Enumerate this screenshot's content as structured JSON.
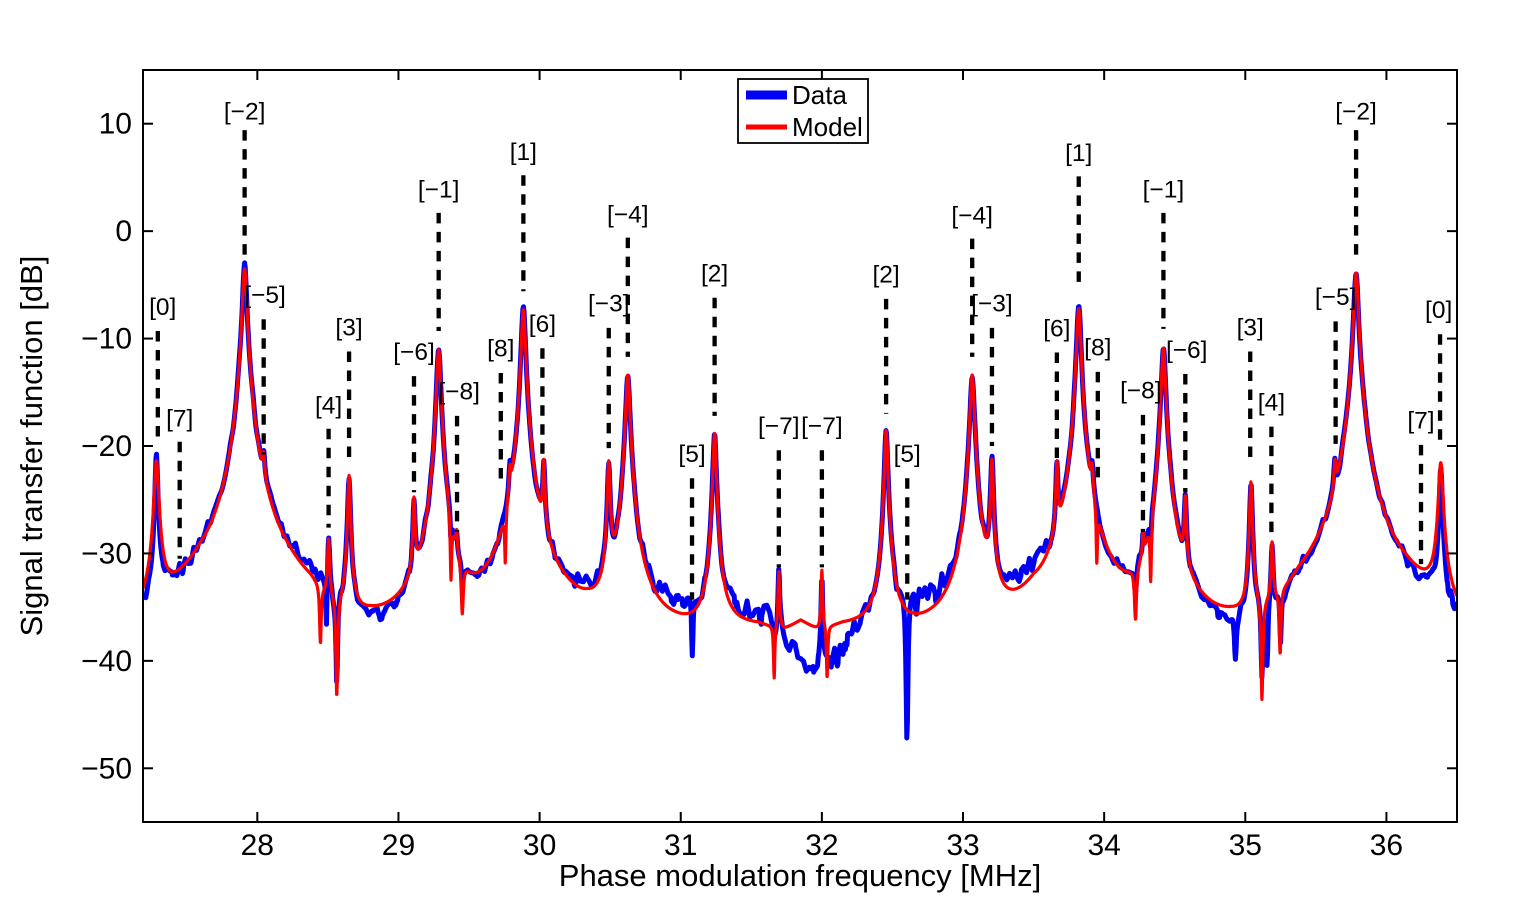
{
  "figure": {
    "background": "#ffffff"
  },
  "chart_data": {
    "type": "line",
    "title": "",
    "xlabel": "Phase modulation frequency [MHz]",
    "ylabel": "Signal transfer function [dB]",
    "xlim": [
      27.19,
      36.5
    ],
    "ylim": [
      -55,
      15
    ],
    "xticks": [
      28,
      29,
      30,
      31,
      32,
      33,
      34,
      35,
      36
    ],
    "yticks": [
      {
        "v": 10,
        "label": "10"
      },
      {
        "v": 0,
        "label": "0"
      },
      {
        "v": -10,
        "label": "−10"
      },
      {
        "v": -20,
        "label": "−20"
      },
      {
        "v": -30,
        "label": "−30"
      },
      {
        "v": -40,
        "label": "−40"
      },
      {
        "v": -50,
        "label": "−50"
      }
    ],
    "grid": false,
    "legend": {
      "position": "top-center",
      "entries": [
        {
          "label": "Data",
          "color": "#0000f2",
          "sample_width": 9
        },
        {
          "label": "Model",
          "color": "#ff0000",
          "sample_width": 5
        }
      ]
    },
    "series": [
      {
        "name": "Data",
        "color": "#0000f2",
        "stroke_width": 5.0
      },
      {
        "name": "Model",
        "color": "#ff0000",
        "stroke_width": 3.2
      }
    ],
    "model_peaks": [
      {
        "mode": "[0]",
        "f": 27.285,
        "db": -21.6,
        "w": 0.03
      },
      {
        "mode": "[−2]",
        "f": 27.91,
        "db": -3.5,
        "w": 0.03
      },
      {
        "mode": "[−5]",
        "f": 28.045,
        "db": -24.8,
        "w": 0.014
      },
      {
        "mode": "[4]",
        "f": 28.505,
        "db": -29.8,
        "w": 0.014
      },
      {
        "mode": "[3]",
        "f": 28.65,
        "db": -22.9,
        "w": 0.018
      },
      {
        "mode": "[−6]",
        "f": 29.11,
        "db": -25.8,
        "w": 0.014
      },
      {
        "mode": "[−1]",
        "f": 29.285,
        "db": -11.0,
        "w": 0.028
      },
      {
        "mode": "[−8]",
        "f": 29.412,
        "db": -32.3,
        "w": 0.01
      },
      {
        "mode": "[8]",
        "f": 29.79,
        "db": -25.5,
        "w": 0.014
      },
      {
        "mode": "[1]",
        "f": 29.885,
        "db": -7.3,
        "w": 0.028
      },
      {
        "mode": "[6]",
        "f": 30.03,
        "db": -22.5,
        "w": 0.014
      },
      {
        "mode": "[−3]",
        "f": 30.49,
        "db": -21.8,
        "w": 0.018
      },
      {
        "mode": "[−4]",
        "f": 30.625,
        "db": -13.4,
        "w": 0.028
      },
      {
        "mode": "[2]",
        "f": 31.24,
        "db": -18.9,
        "w": 0.022
      },
      {
        "mode": "[−7]",
        "f": 31.695,
        "db": -32.9,
        "w": 0.01
      },
      {
        "mode": "[−7]",
        "f": 32.0,
        "db": -32.9,
        "w": 0.01
      },
      {
        "mode": "[2]",
        "f": 32.455,
        "db": -18.6,
        "w": 0.022
      },
      {
        "mode": "[−4]",
        "f": 33.065,
        "db": -13.4,
        "w": 0.028
      },
      {
        "mode": "[−3]",
        "f": 33.205,
        "db": -21.6,
        "w": 0.018
      },
      {
        "mode": "[6]",
        "f": 33.665,
        "db": -22.5,
        "w": 0.014
      },
      {
        "mode": "[1]",
        "f": 33.82,
        "db": -7.2,
        "w": 0.028
      },
      {
        "mode": "[8]",
        "f": 33.915,
        "db": -25.5,
        "w": 0.014
      },
      {
        "mode": "[−8]",
        "f": 34.275,
        "db": -32.3,
        "w": 0.01
      },
      {
        "mode": "[−1]",
        "f": 34.42,
        "db": -10.9,
        "w": 0.028
      },
      {
        "mode": "[−6]",
        "f": 34.575,
        "db": -25.8,
        "w": 0.014
      },
      {
        "mode": "[3]",
        "f": 35.04,
        "db": -23.5,
        "w": 0.018
      },
      {
        "mode": "[4]",
        "f": 35.19,
        "db": -30.2,
        "w": 0.014
      },
      {
        "mode": "[−5]",
        "f": 35.635,
        "db": -24.7,
        "w": 0.014
      },
      {
        "mode": "[−2]",
        "f": 35.785,
        "db": -3.9,
        "w": 0.03
      },
      {
        "mode": "[0]",
        "f": 36.385,
        "db": -21.8,
        "w": 0.03
      }
    ],
    "model_baseline": [
      [
        27.19,
        -40.0
      ],
      [
        27.46,
        -37.5
      ],
      [
        27.6,
        -36.5
      ],
      [
        27.75,
        -40.0
      ],
      [
        28.05,
        -41.0
      ],
      [
        28.22,
        -38.2
      ],
      [
        28.38,
        -38.4
      ],
      [
        28.52,
        -42.0
      ],
      [
        28.65,
        -43.0
      ],
      [
        28.8,
        -41.2
      ],
      [
        29.0,
        -40.8
      ],
      [
        29.18,
        -41.0
      ],
      [
        29.3,
        -42.0
      ],
      [
        29.45,
        -42.5
      ],
      [
        29.58,
        -41.5
      ],
      [
        29.8,
        -42.0
      ],
      [
        30.0,
        -42.0
      ],
      [
        30.18,
        -39.2
      ],
      [
        30.34,
        -39.3
      ],
      [
        30.52,
        -42.0
      ],
      [
        30.7,
        -39.3
      ],
      [
        30.95,
        -39.0
      ],
      [
        31.1,
        -39.0
      ],
      [
        31.35,
        -38.2
      ],
      [
        31.55,
        -38.0
      ],
      [
        31.73,
        -38.6
      ],
      [
        31.85,
        -37.4
      ],
      [
        31.97,
        -38.6
      ],
      [
        32.15,
        -38.0
      ],
      [
        32.4,
        -38.2
      ],
      [
        32.6,
        -39.0
      ],
      [
        32.8,
        -39.2
      ],
      [
        33.0,
        -39.5
      ],
      [
        33.15,
        -42.0
      ],
      [
        33.32,
        -39.8
      ],
      [
        33.5,
        -37.5
      ],
      [
        33.65,
        -40.0
      ],
      [
        33.85,
        -42.0
      ],
      [
        34.05,
        -41.0
      ],
      [
        34.2,
        -40.8
      ],
      [
        34.38,
        -42.0
      ],
      [
        34.52,
        -42.0
      ],
      [
        34.7,
        -41.0
      ],
      [
        34.9,
        -41.2
      ],
      [
        35.06,
        -43.0
      ],
      [
        35.22,
        -42.0
      ],
      [
        35.38,
        -37.8
      ],
      [
        35.55,
        -37.0
      ],
      [
        35.72,
        -41.0
      ],
      [
        36.0,
        -38.0
      ],
      [
        36.14,
        -36.6
      ],
      [
        36.3,
        -37.0
      ],
      [
        36.5,
        -40.0
      ]
    ],
    "model_notches": [
      [
        28.447,
        5.5,
        0.007
      ],
      [
        28.563,
        9.5,
        0.008
      ],
      [
        29.372,
        6,
        0.006
      ],
      [
        29.452,
        5,
        0.009
      ],
      [
        29.757,
        5,
        0.005
      ],
      [
        31.662,
        5,
        0.0055
      ],
      [
        32.037,
        5,
        0.0055
      ],
      [
        33.948,
        5,
        0.005
      ],
      [
        34.222,
        5,
        0.009
      ],
      [
        34.33,
        6,
        0.006
      ],
      [
        35.118,
        9.5,
        0.008
      ],
      [
        35.247,
        6,
        0.007
      ]
    ],
    "data_peak_overrides": [
      {
        "i": 0,
        "db": -21.0,
        "w": 0.018
      },
      {
        "i": 1,
        "db": -3.3,
        "w": 0.03
      },
      {
        "i": 29,
        "db": -22.3,
        "w": 0.02
      }
    ],
    "data_baseline": [
      [
        27.19,
        -40.6
      ],
      [
        27.27,
        -40.2
      ],
      [
        27.36,
        -38.0
      ],
      [
        27.5,
        -37.2
      ],
      [
        27.65,
        -36.0
      ],
      [
        27.8,
        -38.5
      ],
      [
        28.0,
        -37.5
      ],
      [
        28.18,
        -35.9
      ],
      [
        28.32,
        -35.7
      ],
      [
        28.45,
        -37.5
      ],
      [
        28.56,
        -44.0
      ],
      [
        28.68,
        -44.5
      ],
      [
        28.78,
        -48.5
      ],
      [
        28.88,
        -45.5
      ],
      [
        28.98,
        -44.0
      ],
      [
        29.08,
        -42.0
      ],
      [
        29.22,
        -41.0
      ],
      [
        29.36,
        -41.5
      ],
      [
        29.48,
        -43.2
      ],
      [
        29.6,
        -42.5
      ],
      [
        29.72,
        -41.0
      ],
      [
        29.95,
        -41.0
      ],
      [
        30.12,
        -37.6
      ],
      [
        30.28,
        -36.3
      ],
      [
        30.42,
        -37.2
      ],
      [
        30.58,
        -40.0
      ],
      [
        30.72,
        -36.8
      ],
      [
        30.88,
        -36.1
      ],
      [
        31.02,
        -36.7
      ],
      [
        31.2,
        -38.0
      ],
      [
        31.35,
        -36.9
      ],
      [
        31.5,
        -36.3
      ],
      [
        31.65,
        -37.2
      ],
      [
        31.8,
        -41.5
      ],
      [
        31.92,
        -45.8
      ],
      [
        32.02,
        -45.0
      ],
      [
        32.14,
        -42.5
      ],
      [
        32.28,
        -37.6
      ],
      [
        32.42,
        -36.5
      ],
      [
        32.58,
        -36.8
      ],
      [
        32.72,
        -36.3
      ],
      [
        32.88,
        -35.8
      ],
      [
        33.04,
        -36.8
      ],
      [
        33.18,
        -39.0
      ],
      [
        33.35,
        -34.9
      ],
      [
        33.55,
        -34.7
      ],
      [
        33.72,
        -36.6
      ],
      [
        33.92,
        -40.0
      ],
      [
        34.08,
        -40.0
      ],
      [
        34.2,
        -40.6
      ],
      [
        34.35,
        -41.5
      ],
      [
        34.5,
        -41.5
      ],
      [
        34.65,
        -41.8
      ],
      [
        34.8,
        -44.0
      ],
      [
        34.93,
        -48.5
      ],
      [
        35.02,
        -45.0
      ],
      [
        35.12,
        -46.5
      ],
      [
        35.25,
        -44.0
      ],
      [
        35.38,
        -38.3
      ],
      [
        35.52,
        -37.4
      ],
      [
        35.68,
        -38.5
      ],
      [
        35.85,
        -41.0
      ],
      [
        36.05,
        -37.6
      ],
      [
        36.22,
        -37.9
      ],
      [
        36.35,
        -38.5
      ],
      [
        36.45,
        -40.8
      ],
      [
        36.5,
        -41.2
      ]
    ],
    "data_notches": [
      [
        28.49,
        5,
        0.005
      ],
      [
        28.563,
        8,
        0.007
      ],
      [
        29.372,
        2.5,
        0.005
      ],
      [
        29.452,
        2.5,
        0.008
      ],
      [
        31.082,
        5.5,
        0.006
      ],
      [
        32.603,
        13.5,
        0.008
      ],
      [
        34.222,
        2.5,
        0.008
      ],
      [
        34.33,
        2.5,
        0.005
      ],
      [
        34.93,
        4,
        0.008
      ],
      [
        35.118,
        7,
        0.008
      ],
      [
        35.155,
        6,
        0.006
      ],
      [
        35.25,
        5,
        0.006
      ]
    ],
    "annotations": [
      {
        "label": "[0]",
        "f": 27.295,
        "dx": 0.035,
        "label_db": -7.0,
        "top_db": -9.3,
        "bottom_db": -19.6
      },
      {
        "label": "[7]",
        "f": 27.45,
        "dx": 0,
        "label_db": -17.4,
        "top_db": -19.6,
        "bottom_db": -30.5
      },
      {
        "label": "[−2]",
        "f": 27.91,
        "dx": 0,
        "label_db": 11.2,
        "top_db": 9.4,
        "bottom_db": -2.2
      },
      {
        "label": "[−5]",
        "f": 28.045,
        "dx": 0.01,
        "label_db": -5.9,
        "top_db": -8.2,
        "bottom_db": -20.8
      },
      {
        "label": "[4]",
        "f": 28.505,
        "dx": 0,
        "label_db": -16.2,
        "top_db": -18.4,
        "bottom_db": -27.6
      },
      {
        "label": "[3]",
        "f": 28.65,
        "dx": 0,
        "label_db": -8.9,
        "top_db": -11.2,
        "bottom_db": -21.3
      },
      {
        "label": "[−6]",
        "f": 29.11,
        "dx": 0,
        "label_db": -11.2,
        "top_db": -13.5,
        "bottom_db": -24.3
      },
      {
        "label": "[−1]",
        "f": 29.285,
        "dx": 0,
        "label_db": 3.9,
        "top_db": 1.7,
        "bottom_db": -9.3
      },
      {
        "label": "[−8]",
        "f": 29.415,
        "dx": 0.015,
        "label_db": -14.9,
        "top_db": -17.2,
        "bottom_db": -28.0
      },
      {
        "label": "[8]",
        "f": 29.725,
        "dx": 0,
        "label_db": -10.9,
        "top_db": -13.2,
        "bottom_db": -23.2
      },
      {
        "label": "[1]",
        "f": 29.885,
        "dx": 0,
        "label_db": 7.4,
        "top_db": 5.2,
        "bottom_db": -5.6
      },
      {
        "label": "[6]",
        "f": 30.02,
        "dx": 0,
        "label_db": -8.6,
        "top_db": -10.9,
        "bottom_db": -21.5
      },
      {
        "label": "[−3]",
        "f": 30.49,
        "dx": 0,
        "label_db": -6.7,
        "top_db": -9.0,
        "bottom_db": -20.2
      },
      {
        "label": "[−4]",
        "f": 30.625,
        "dx": 0,
        "label_db": 1.6,
        "top_db": -0.6,
        "bottom_db": -11.7
      },
      {
        "label": "[5]",
        "f": 31.08,
        "dx": 0,
        "label_db": -20.7,
        "top_db": -23.0,
        "bottom_db": -34.3
      },
      {
        "label": "[2]",
        "f": 31.24,
        "dx": 0,
        "label_db": -3.9,
        "top_db": -6.2,
        "bottom_db": -17.2
      },
      {
        "label": "[−7]",
        "f": 31.695,
        "dx": 0,
        "label_db": -18.1,
        "top_db": -20.4,
        "bottom_db": -31.3
      },
      {
        "label": "[−7]",
        "f": 32.0,
        "dx": 0,
        "label_db": -18.1,
        "top_db": -20.4,
        "bottom_db": -31.3
      },
      {
        "label": "[2]",
        "f": 32.455,
        "dx": 0,
        "label_db": -4.0,
        "top_db": -6.3,
        "bottom_db": -17.0
      },
      {
        "label": "[5]",
        "f": 32.605,
        "dx": 0,
        "label_db": -20.7,
        "top_db": -23.0,
        "bottom_db": -34.3
      },
      {
        "label": "[−4]",
        "f": 33.065,
        "dx": 0,
        "label_db": 1.5,
        "top_db": -0.7,
        "bottom_db": -11.7
      },
      {
        "label": "[−3]",
        "f": 33.205,
        "dx": 0,
        "label_db": -6.7,
        "top_db": -9.0,
        "bottom_db": -20.0
      },
      {
        "label": "[6]",
        "f": 33.665,
        "dx": 0,
        "label_db": -9.0,
        "top_db": -11.3,
        "bottom_db": -21.9
      },
      {
        "label": "[1]",
        "f": 33.82,
        "dx": 0,
        "label_db": 7.3,
        "top_db": 5.1,
        "bottom_db": -5.5
      },
      {
        "label": "[8]",
        "f": 33.955,
        "dx": 0,
        "label_db": -10.8,
        "top_db": -13.1,
        "bottom_db": -23.2
      },
      {
        "label": "[−8]",
        "f": 34.275,
        "dx": -0.015,
        "label_db": -14.8,
        "top_db": -17.1,
        "bottom_db": -28.0
      },
      {
        "label": "[−1]",
        "f": 34.42,
        "dx": 0,
        "label_db": 3.9,
        "top_db": 1.7,
        "bottom_db": -9.1
      },
      {
        "label": "[−6]",
        "f": 34.575,
        "dx": 0.01,
        "label_db": -11.0,
        "top_db": -13.3,
        "bottom_db": -24.3
      },
      {
        "label": "[3]",
        "f": 35.035,
        "dx": 0,
        "label_db": -8.9,
        "top_db": -11.2,
        "bottom_db": -21.7
      },
      {
        "label": "[4]",
        "f": 35.185,
        "dx": 0,
        "label_db": -15.9,
        "top_db": -18.2,
        "bottom_db": -28.3
      },
      {
        "label": "[−5]",
        "f": 35.64,
        "dx": 0,
        "label_db": -6.1,
        "top_db": -8.4,
        "bottom_db": -19.8
      },
      {
        "label": "[−2]",
        "f": 35.785,
        "dx": 0,
        "label_db": 11.2,
        "top_db": 9.4,
        "bottom_db": -2.5
      },
      {
        "label": "[7]",
        "f": 36.245,
        "dx": 0,
        "label_db": -17.6,
        "top_db": -19.9,
        "bottom_db": -31.0
      },
      {
        "label": "[0]",
        "f": 36.38,
        "dx": -0.01,
        "label_db": -7.3,
        "top_db": -9.6,
        "bottom_db": -19.7
      }
    ]
  }
}
